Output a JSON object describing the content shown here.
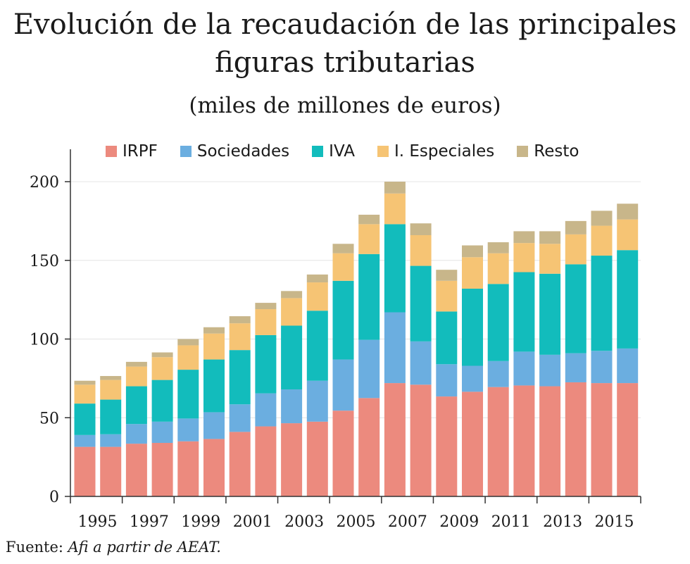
{
  "title_line1": "Evolución de la recaudación de las principales",
  "title_line2": "figuras tributarias",
  "subtitle": "(miles de millones de euros)",
  "source_prefix": "Fuente: ",
  "source_text": "Afi a partir de AEAT.",
  "chart_data": {
    "type": "bar",
    "stacked": true,
    "categories": [
      "1995",
      "1996",
      "1997",
      "1998",
      "1999",
      "2000",
      "2001",
      "2002",
      "2003",
      "2004",
      "2005",
      "2006",
      "2007",
      "2008",
      "2009",
      "2010",
      "2011",
      "2012",
      "2013",
      "2014",
      "2015",
      "2016"
    ],
    "x_tick_labels": [
      "1995",
      "1997",
      "1999",
      "2001",
      "2003",
      "2005",
      "2007",
      "2009",
      "2011",
      "2013",
      "2015"
    ],
    "y_ticks": [
      0,
      50,
      100,
      150,
      200
    ],
    "ylim": [
      0,
      200
    ],
    "grid": true,
    "legend_position": "top",
    "series": [
      {
        "name": "IRPF",
        "color": "#ec8a7e",
        "values": [
          31.5,
          31.5,
          33.5,
          34,
          35,
          36.5,
          41,
          44.5,
          46.5,
          47.5,
          54.5,
          62.5,
          72,
          71,
          63.5,
          66.5,
          69.5,
          70.5,
          70,
          72.5,
          72,
          72
        ]
      },
      {
        "name": "Sociedades",
        "color": "#6baee0",
        "values": [
          7.5,
          8,
          12.5,
          13.5,
          14.5,
          17,
          17.5,
          21,
          21.5,
          26,
          32.5,
          37,
          45,
          27.5,
          20.5,
          16.5,
          16.5,
          21.5,
          20,
          18.5,
          20.5,
          22
        ]
      },
      {
        "name": "IVA",
        "color": "#12bcbc",
        "values": [
          20,
          22,
          24,
          26.5,
          31,
          33.5,
          34.5,
          37,
          40.5,
          44.5,
          50,
          54.5,
          56,
          48,
          33.5,
          49,
          49,
          50.5,
          51.5,
          56.5,
          60.5,
          62.5
        ]
      },
      {
        "name": "I. Especiales",
        "color": "#f6c474",
        "values": [
          12,
          12.5,
          12.5,
          14.5,
          15.5,
          16.5,
          17,
          16.5,
          17.5,
          18,
          17.5,
          19,
          19.5,
          19.5,
          19.5,
          20,
          19.5,
          18.5,
          19,
          19,
          19,
          19.5
        ]
      },
      {
        "name": "Resto",
        "color": "#c8b68a",
        "values": [
          2.5,
          2.5,
          3,
          3,
          4,
          4,
          4.5,
          4,
          4.5,
          5,
          6,
          6,
          7.5,
          7.5,
          7,
          7.5,
          7,
          7.5,
          8,
          8.5,
          9.5,
          10
        ]
      }
    ]
  }
}
